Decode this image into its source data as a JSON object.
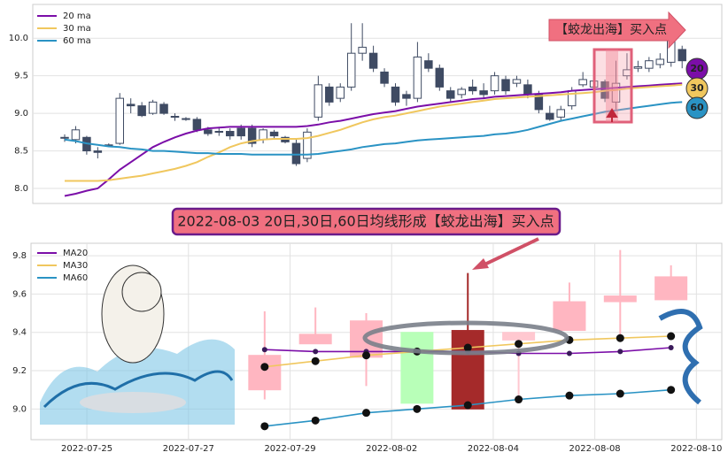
{
  "chart_data": [
    {
      "type": "candlestick",
      "annotation": "【蛟龙出海】买入点",
      "badges": [
        "20",
        "30",
        "60"
      ],
      "ylim": [
        7.8,
        10.45
      ],
      "yticks": [
        {
          "value": 8.0,
          "label": "8.0"
        },
        8.5,
        {
          "value": 9.0,
          "label": "9.0"
        },
        9.5,
        {
          "value": 10.0,
          "label": "10.0"
        }
      ],
      "grid": true,
      "legend": "upper left",
      "up_color": "#ffffff",
      "down_color": "#3f4b63",
      "open": [
        8.67,
        8.65,
        8.68,
        8.5,
        8.58,
        8.6,
        9.12,
        9.1,
        9.0,
        9.12,
        8.96,
        8.93,
        8.92,
        8.78,
        8.76,
        8.76,
        8.8,
        8.8,
        8.65,
        8.75,
        8.68,
        8.6,
        8.4,
        8.95,
        9.35,
        9.2,
        9.35,
        9.8,
        9.8,
        9.55,
        9.35,
        9.25,
        9.2,
        9.7,
        9.6,
        9.3,
        9.25,
        9.35,
        9.3,
        9.3,
        9.45,
        9.4,
        9.38,
        9.25,
        9.0,
        8.95,
        9.1,
        9.38,
        9.35,
        9.42,
        9.15,
        9.5,
        9.6,
        9.6,
        9.65,
        9.68,
        9.85
      ],
      "high": [
        8.72,
        8.83,
        8.7,
        8.55,
        8.6,
        9.27,
        9.2,
        9.15,
        9.18,
        9.15,
        9.0,
        8.95,
        8.95,
        8.82,
        8.82,
        8.8,
        8.85,
        8.85,
        8.8,
        8.78,
        8.7,
        8.65,
        8.8,
        9.5,
        9.4,
        9.4,
        10.2,
        10.2,
        9.9,
        9.6,
        9.4,
        9.3,
        9.95,
        9.8,
        9.65,
        9.35,
        9.35,
        9.45,
        9.4,
        9.55,
        9.5,
        9.5,
        9.45,
        9.3,
        9.1,
        9.1,
        9.35,
        9.55,
        9.5,
        9.45,
        9.7,
        9.8,
        9.7,
        9.75,
        9.8,
        10.05,
        9.9
      ],
      "low": [
        8.62,
        8.6,
        8.45,
        8.4,
        8.55,
        8.58,
        9.0,
        8.95,
        8.98,
        8.98,
        8.9,
        8.9,
        8.75,
        8.7,
        8.7,
        8.65,
        8.65,
        8.55,
        8.6,
        8.65,
        8.6,
        8.3,
        8.35,
        8.9,
        9.1,
        9.15,
        9.3,
        9.7,
        9.55,
        9.35,
        9.1,
        9.1,
        9.15,
        9.55,
        9.3,
        9.15,
        9.2,
        9.25,
        9.2,
        9.25,
        9.25,
        9.35,
        9.2,
        9.0,
        8.9,
        8.9,
        9.05,
        9.35,
        9.3,
        9.15,
        9.05,
        9.45,
        9.55,
        9.55,
        9.6,
        9.62,
        9.6
      ],
      "close": [
        8.68,
        8.78,
        8.5,
        8.48,
        8.57,
        9.2,
        9.1,
        8.97,
        9.15,
        9.0,
        8.95,
        8.92,
        8.78,
        8.73,
        8.75,
        8.7,
        8.7,
        8.6,
        8.78,
        8.7,
        8.62,
        8.33,
        8.75,
        9.38,
        9.15,
        9.35,
        9.8,
        9.88,
        9.6,
        9.4,
        9.15,
        9.2,
        9.75,
        9.6,
        9.35,
        9.2,
        9.32,
        9.3,
        9.25,
        9.5,
        9.3,
        9.45,
        9.25,
        9.05,
        8.92,
        9.05,
        9.3,
        9.45,
        9.43,
        9.2,
        9.4,
        9.58,
        9.62,
        9.7,
        9.72,
        9.98,
        9.7
      ],
      "series": [
        {
          "name": "20 ma",
          "color": "#7b0ea8",
          "values": [
            7.9,
            7.93,
            7.97,
            8.0,
            8.12,
            8.25,
            8.35,
            8.45,
            8.55,
            8.62,
            8.68,
            8.73,
            8.77,
            8.8,
            8.81,
            8.82,
            8.82,
            8.82,
            8.82,
            8.82,
            8.82,
            8.82,
            8.83,
            8.85,
            8.88,
            8.9,
            8.93,
            8.96,
            8.99,
            9.01,
            9.03,
            9.06,
            9.09,
            9.11,
            9.13,
            9.15,
            9.17,
            9.19,
            9.2,
            9.22,
            9.23,
            9.24,
            9.25,
            9.26,
            9.27,
            9.28,
            9.3,
            9.31,
            9.32,
            9.33,
            9.34,
            9.35,
            9.36,
            9.37,
            9.38,
            9.39,
            9.4
          ]
        },
        {
          "name": "30 ma",
          "color": "#f0c75e",
          "values": [
            8.1,
            8.1,
            8.1,
            8.1,
            8.11,
            8.13,
            8.15,
            8.17,
            8.2,
            8.23,
            8.26,
            8.3,
            8.35,
            8.42,
            8.48,
            8.55,
            8.6,
            8.63,
            8.65,
            8.66,
            8.66,
            8.66,
            8.67,
            8.7,
            8.74,
            8.78,
            8.83,
            8.88,
            8.92,
            8.95,
            8.97,
            9.0,
            9.03,
            9.06,
            9.09,
            9.11,
            9.13,
            9.15,
            9.17,
            9.19,
            9.2,
            9.21,
            9.22,
            9.23,
            9.24,
            9.25,
            9.26,
            9.27,
            9.28,
            9.3,
            9.31,
            9.33,
            9.34,
            9.35,
            9.36,
            9.37,
            9.38
          ]
        },
        {
          "name": "60 ma",
          "color": "#2a93c4",
          "values": [
            8.65,
            8.63,
            8.6,
            8.58,
            8.56,
            8.55,
            8.53,
            8.52,
            8.5,
            8.5,
            8.49,
            8.48,
            8.47,
            8.47,
            8.46,
            8.46,
            8.46,
            8.45,
            8.45,
            8.45,
            8.45,
            8.45,
            8.45,
            8.46,
            8.48,
            8.5,
            8.52,
            8.55,
            8.57,
            8.59,
            8.6,
            8.62,
            8.64,
            8.65,
            8.66,
            8.67,
            8.68,
            8.69,
            8.7,
            8.72,
            8.73,
            8.75,
            8.78,
            8.82,
            8.86,
            8.9,
            8.93,
            8.96,
            8.99,
            9.02,
            9.04,
            9.06,
            9.08,
            9.1,
            9.12,
            9.14,
            9.15
          ]
        }
      ]
    },
    {
      "type": "candlestick",
      "title": "2022-08-03 20日,30日,60日均线形成【蛟龙出海】买入点",
      "x": [
        0,
        1,
        2,
        3,
        4,
        5,
        6,
        7,
        8
      ],
      "xlim": [
        -4.6,
        9.0
      ],
      "xticks": [
        {
          "value": -3.5,
          "label": "2022-07-25"
        },
        {
          "value": -1.5,
          "label": "2022-07-27"
        },
        {
          "value": 0.5,
          "label": "2022-07-29"
        },
        {
          "value": 2.5,
          "label": "2022-08-02"
        },
        {
          "value": 4.5,
          "label": "2022-08-04"
        },
        {
          "value": 6.5,
          "label": "2022-08-08"
        },
        {
          "value": 8.5,
          "label": "2022-08-10"
        }
      ],
      "ylim": [
        8.84,
        9.865
      ],
      "yticks": [
        {
          "value": 9.0,
          "label": "9.0"
        },
        9.2,
        9.4,
        9.6,
        9.8
      ],
      "grid": true,
      "legend": "upper left",
      "open": [
        9.1,
        9.34,
        9.27,
        9.03,
        9.0,
        9.36,
        9.41,
        9.56,
        9.57
      ],
      "high": [
        9.51,
        9.53,
        9.5,
        9.4,
        9.71,
        9.4,
        9.66,
        9.83,
        9.75
      ],
      "low": [
        9.05,
        9.34,
        9.12,
        9.03,
        9.0,
        9.03,
        9.41,
        9.36,
        9.57
      ],
      "close": [
        9.28,
        9.39,
        9.46,
        9.4,
        9.41,
        9.4,
        9.56,
        9.59,
        9.69
      ],
      "colors": [
        "#ffb6c1",
        "#ffb6c1",
        "#ffb6c1",
        "#b8ffb8",
        "#a52a2a",
        "#ffc8d0",
        "#ffb6c1",
        "#ffb6c1",
        "#ffb6c1"
      ],
      "series": [
        {
          "name": "MA20",
          "color": "#7b0ea8",
          "values": [
            9.31,
            9.3,
            9.3,
            9.3,
            9.3,
            9.29,
            9.29,
            9.3,
            9.32
          ]
        },
        {
          "name": "MA30",
          "color": "#f0c75e",
          "values": [
            9.22,
            9.25,
            9.28,
            9.3,
            9.32,
            9.34,
            9.36,
            9.37,
            9.38
          ]
        },
        {
          "name": "MA60",
          "color": "#2a93c4",
          "values": [
            8.91,
            8.94,
            8.98,
            9.0,
            9.02,
            9.05,
            9.07,
            9.08,
            9.1
          ]
        }
      ]
    }
  ]
}
